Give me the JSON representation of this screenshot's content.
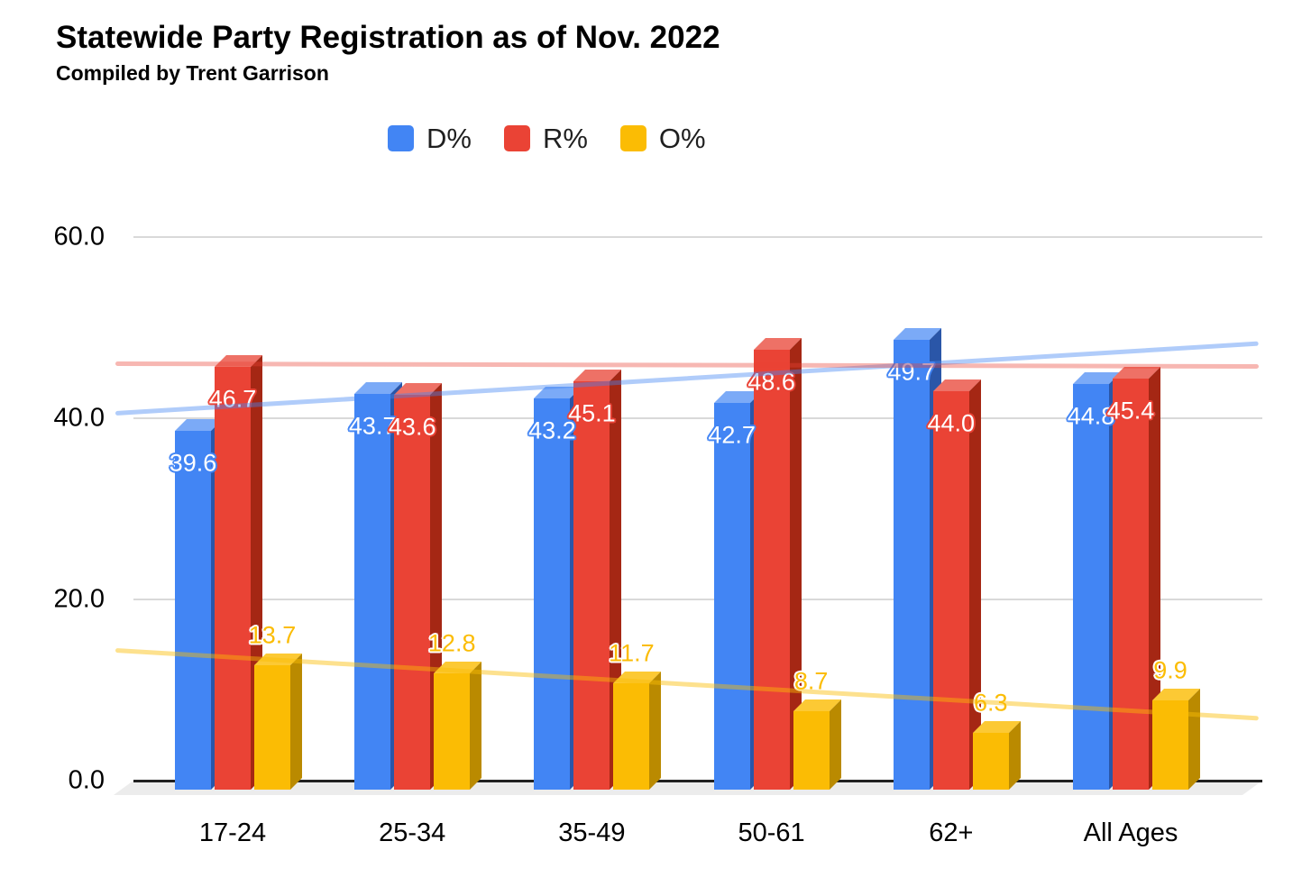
{
  "title": "Statewide Party Registration as of Nov. 2022",
  "subtitle": "Compiled by Trent Garrison",
  "legend": {
    "position": "top",
    "items": [
      {
        "label": "D%",
        "color": "#4285F4"
      },
      {
        "label": "R%",
        "color": "#EA4335"
      },
      {
        "label": "O%",
        "color": "#FBBC04"
      }
    ]
  },
  "chart_data": {
    "type": "bar",
    "subtype": "3d-grouped-columns-with-trendlines",
    "title": "Statewide Party Registration as of Nov. 2022",
    "subtitle": "Compiled by Trent Garrison",
    "categories": [
      "17-24",
      "25-34",
      "35-49",
      "50-61",
      "62+",
      "All Ages"
    ],
    "series": [
      {
        "name": "D%",
        "values": [
          39.6,
          43.7,
          43.2,
          42.7,
          49.7,
          44.8
        ],
        "color": "#4285F4",
        "color_top": "#7BAAF7",
        "color_side": "#2A56A8",
        "label_fill": "#ffffff",
        "label_outline": "rgba(66,133,244,0.9)"
      },
      {
        "name": "R%",
        "values": [
          46.7,
          43.6,
          45.1,
          48.6,
          44.0,
          45.4
        ],
        "color": "#EA4335",
        "color_top": "#EE7166",
        "color_side": "#A52714",
        "label_fill": "#ffffff",
        "label_outline": "rgba(234,67,53,0.9)"
      },
      {
        "name": "O%",
        "values": [
          13.7,
          12.8,
          11.7,
          8.7,
          6.3,
          9.9
        ],
        "color": "#FBBC04",
        "color_top": "#FCC934",
        "color_side": "#BA8A00",
        "label_fill": "#FBBC04",
        "label_outline": "rgba(255,255,255,0.95)"
      }
    ],
    "trendlines": [
      {
        "series": "D%",
        "start_value": 40.5,
        "end_value": 48.2,
        "color": "rgba(66,133,244,0.42)"
      },
      {
        "series": "R%",
        "start_value": 46.0,
        "end_value": 45.7,
        "color": "rgba(234,67,53,0.38)"
      },
      {
        "series": "O%",
        "start_value": 14.4,
        "end_value": 6.9,
        "color": "rgba(251,188,4,0.45)"
      }
    ],
    "y_axis": {
      "tick_labels": [
        "0.0",
        "20.0",
        "40.0",
        "60.0"
      ],
      "tick_values": [
        0,
        20,
        40,
        60
      ],
      "ylim": [
        0,
        60
      ]
    },
    "x_axis": {
      "label": ""
    },
    "grid": true,
    "legend_position": "top"
  }
}
